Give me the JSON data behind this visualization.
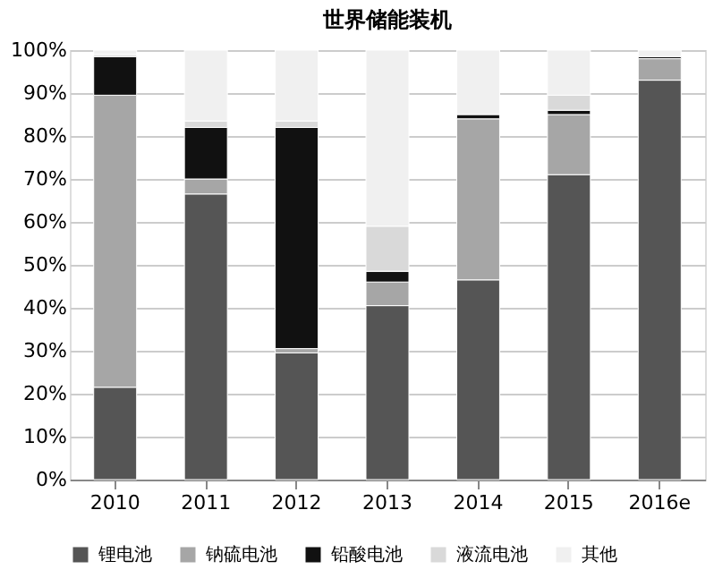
{
  "chart_data": {
    "type": "bar",
    "title": "世界储能装机",
    "stacked": true,
    "categories": [
      "2010",
      "2011",
      "2012",
      "2013",
      "2014",
      "2015",
      "2016e"
    ],
    "series": [
      {
        "name": "锂电池",
        "color": "#555555",
        "values": [
          21.5,
          66.5,
          29.5,
          40.5,
          46.5,
          71,
          93
        ]
      },
      {
        "name": "钠硫电池",
        "color": "#a6a6a6",
        "values": [
          68,
          3.5,
          1,
          5.5,
          37.5,
          14,
          5
        ]
      },
      {
        "name": "铅酸电池",
        "color": "#111111",
        "values": [
          9,
          12,
          51.5,
          2.5,
          1,
          1,
          0.5
        ]
      },
      {
        "name": "液流电池",
        "color": "#d9d9d9",
        "values": [
          0.5,
          1.5,
          1.5,
          10.5,
          null,
          3.5,
          null
        ]
      },
      {
        "name": "其他",
        "color": "#f0f0f0",
        "values": [
          1,
          16.5,
          16.5,
          41,
          15,
          10.5,
          1.5
        ]
      }
    ],
    "ylim": [
      0,
      100
    ],
    "yticks": [
      {
        "value": 0,
        "label": "0%"
      },
      {
        "value": 10,
        "label": "10%"
      },
      {
        "value": 20,
        "label": "20%"
      },
      {
        "value": 30,
        "label": "30%"
      },
      {
        "value": 40,
        "label": "40%"
      },
      {
        "value": 50,
        "label": "50%"
      },
      {
        "value": 60,
        "label": "60%"
      },
      {
        "value": 70,
        "label": "70%"
      },
      {
        "value": 80,
        "label": "80%"
      },
      {
        "value": 90,
        "label": "90%"
      },
      {
        "value": 100,
        "label": "100%"
      }
    ],
    "grid": "y",
    "legend": "bottom"
  }
}
